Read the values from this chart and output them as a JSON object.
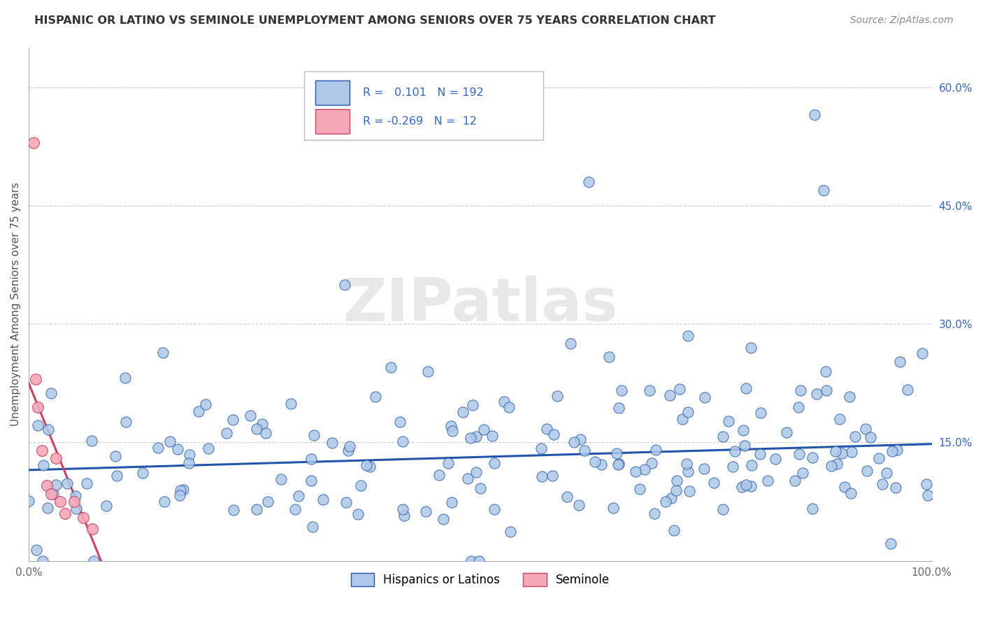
{
  "title": "HISPANIC OR LATINO VS SEMINOLE UNEMPLOYMENT AMONG SENIORS OVER 75 YEARS CORRELATION CHART",
  "source": "Source: ZipAtlas.com",
  "ylabel": "Unemployment Among Seniors over 75 years",
  "xlim": [
    0,
    1.0
  ],
  "ylim": [
    0,
    0.65
  ],
  "xtick_labels": [
    "0.0%",
    "",
    "",
    "",
    "",
    "",
    "",
    "",
    "",
    "",
    "100.0%"
  ],
  "xtick_vals": [
    0.0,
    0.1,
    0.2,
    0.3,
    0.4,
    0.5,
    0.6,
    0.7,
    0.8,
    0.9,
    1.0
  ],
  "ytick_labels_right": [
    "15.0%",
    "30.0%",
    "45.0%",
    "60.0%"
  ],
  "ytick_vals_right": [
    0.15,
    0.3,
    0.45,
    0.6
  ],
  "blue_R": 0.101,
  "blue_N": 192,
  "pink_R": -0.269,
  "pink_N": 12,
  "blue_color": "#adc8e8",
  "pink_color": "#f4a8b8",
  "blue_line_color": "#2255aa",
  "pink_line_color": "#d04060",
  "watermark": "ZIPatlas",
  "legend_label_blue": "Hispanics or Latinos",
  "legend_label_pink": "Seminole",
  "background_color": "#ffffff",
  "grid_color": "#cccccc",
  "blue_trend_start": 0.115,
  "blue_trend_end": 0.148,
  "pink_trend_x0": 0.0,
  "pink_trend_y0": 0.225,
  "pink_trend_x1": 0.08,
  "pink_trend_y1": 0.0
}
